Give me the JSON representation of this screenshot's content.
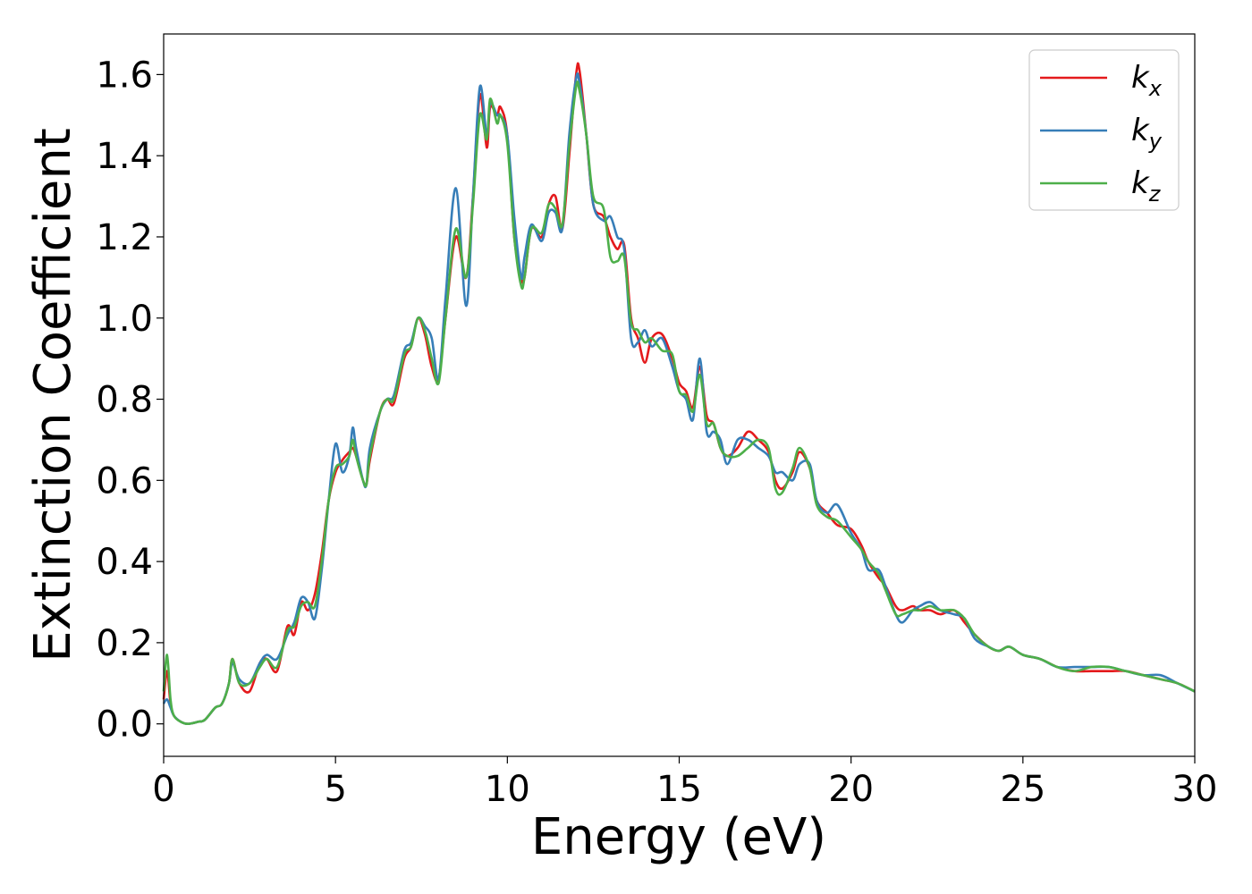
{
  "chart_data": {
    "type": "line",
    "title": "",
    "xlabel": "Energy (eV)",
    "ylabel": "Extinction Coefficient",
    "xlim": [
      0,
      30
    ],
    "ylim": [
      -0.08,
      1.7
    ],
    "xticks": [
      0,
      5,
      10,
      15,
      20,
      25,
      30
    ],
    "yticks": [
      0.0,
      0.2,
      0.4,
      0.6,
      0.8,
      1.0,
      1.2,
      1.4,
      1.6
    ],
    "grid": false,
    "legend_position": "top-right",
    "series": [
      {
        "name": "kx",
        "legend_base": "k",
        "legend_sub": "x",
        "color": "#e41a1c",
        "x": [
          0,
          0.1,
          0.2,
          0.3,
          0.5,
          0.7,
          1.0,
          1.2,
          1.5,
          1.7,
          1.9,
          2.0,
          2.2,
          2.5,
          2.8,
          3.0,
          3.3,
          3.6,
          3.8,
          4.0,
          4.2,
          4.4,
          4.6,
          4.8,
          5.0,
          5.2,
          5.4,
          5.5,
          5.6,
          5.8,
          5.9,
          6.0,
          6.3,
          6.5,
          6.7,
          7.0,
          7.2,
          7.4,
          7.6,
          7.8,
          8.0,
          8.2,
          8.5,
          8.8,
          9.0,
          9.2,
          9.4,
          9.5,
          9.7,
          9.8,
          10.0,
          10.2,
          10.4,
          10.5,
          10.7,
          11.0,
          11.2,
          11.4,
          11.6,
          11.8,
          12.0,
          12.1,
          12.3,
          12.5,
          12.8,
          13.0,
          13.2,
          13.4,
          13.6,
          13.8,
          14.0,
          14.2,
          14.5,
          14.8,
          15.0,
          15.2,
          15.4,
          15.6,
          15.8,
          16.0,
          16.2,
          16.4,
          16.7,
          17.0,
          17.3,
          17.6,
          17.8,
          18.0,
          18.3,
          18.5,
          18.8,
          19.0,
          19.3,
          19.6,
          20.0,
          20.3,
          20.5,
          20.8,
          21.0,
          21.3,
          21.5,
          21.8,
          22.0,
          22.3,
          22.6,
          23.0,
          23.3,
          23.6,
          24.0,
          24.3,
          24.6,
          25.0,
          25.5,
          26.0,
          26.5,
          27.0,
          27.5,
          28.0,
          28.5,
          29.0,
          29.5,
          30.0
        ],
        "y": [
          0.06,
          0.13,
          0.05,
          0.02,
          0.005,
          0.0,
          0.005,
          0.01,
          0.04,
          0.05,
          0.1,
          0.16,
          0.1,
          0.08,
          0.15,
          0.16,
          0.13,
          0.24,
          0.22,
          0.3,
          0.28,
          0.32,
          0.42,
          0.55,
          0.62,
          0.65,
          0.67,
          0.68,
          0.66,
          0.6,
          0.59,
          0.65,
          0.77,
          0.8,
          0.79,
          0.9,
          0.93,
          1.0,
          0.96,
          0.88,
          0.85,
          1.0,
          1.2,
          1.1,
          1.3,
          1.55,
          1.42,
          1.52,
          1.5,
          1.52,
          1.45,
          1.2,
          1.1,
          1.1,
          1.22,
          1.2,
          1.28,
          1.3,
          1.22,
          1.4,
          1.6,
          1.61,
          1.45,
          1.28,
          1.25,
          1.2,
          1.17,
          1.18,
          1.0,
          0.95,
          0.89,
          0.95,
          0.96,
          0.9,
          0.84,
          0.82,
          0.78,
          0.88,
          0.76,
          0.74,
          0.68,
          0.66,
          0.68,
          0.72,
          0.7,
          0.67,
          0.6,
          0.58,
          0.62,
          0.67,
          0.63,
          0.55,
          0.52,
          0.49,
          0.48,
          0.44,
          0.4,
          0.36,
          0.34,
          0.29,
          0.28,
          0.29,
          0.28,
          0.28,
          0.27,
          0.28,
          0.25,
          0.22,
          0.19,
          0.18,
          0.19,
          0.17,
          0.16,
          0.14,
          0.13,
          0.13,
          0.13,
          0.13,
          0.12,
          0.11,
          0.1,
          0.08
        ]
      },
      {
        "name": "ky",
        "legend_base": "k",
        "legend_sub": "y",
        "color": "#377eb8",
        "x": [
          0,
          0.1,
          0.2,
          0.3,
          0.5,
          0.7,
          1.0,
          1.2,
          1.5,
          1.7,
          1.9,
          2.0,
          2.2,
          2.5,
          2.8,
          3.0,
          3.3,
          3.6,
          3.8,
          4.0,
          4.2,
          4.4,
          4.6,
          4.8,
          5.0,
          5.2,
          5.4,
          5.5,
          5.6,
          5.8,
          5.9,
          6.0,
          6.3,
          6.5,
          6.7,
          7.0,
          7.2,
          7.4,
          7.6,
          7.8,
          8.0,
          8.2,
          8.5,
          8.8,
          9.0,
          9.2,
          9.4,
          9.5,
          9.7,
          9.8,
          10.0,
          10.2,
          10.4,
          10.5,
          10.7,
          11.0,
          11.2,
          11.4,
          11.6,
          11.8,
          12.0,
          12.1,
          12.3,
          12.5,
          12.8,
          13.0,
          13.2,
          13.4,
          13.6,
          13.8,
          14.0,
          14.2,
          14.5,
          14.8,
          15.0,
          15.2,
          15.4,
          15.6,
          15.8,
          16.0,
          16.2,
          16.4,
          16.7,
          17.0,
          17.3,
          17.6,
          17.8,
          18.0,
          18.3,
          18.5,
          18.8,
          19.0,
          19.3,
          19.6,
          20.0,
          20.3,
          20.5,
          20.8,
          21.0,
          21.3,
          21.5,
          21.8,
          22.0,
          22.3,
          22.6,
          23.0,
          23.3,
          23.6,
          24.0,
          24.3,
          24.6,
          25.0,
          25.5,
          26.0,
          26.5,
          27.0,
          27.5,
          28.0,
          28.5,
          29.0,
          29.5,
          30.0
        ],
        "y": [
          0.05,
          0.06,
          0.04,
          0.02,
          0.005,
          0.0,
          0.005,
          0.01,
          0.04,
          0.05,
          0.1,
          0.15,
          0.11,
          0.1,
          0.15,
          0.17,
          0.16,
          0.22,
          0.25,
          0.31,
          0.3,
          0.26,
          0.38,
          0.55,
          0.69,
          0.62,
          0.66,
          0.73,
          0.68,
          0.6,
          0.59,
          0.68,
          0.77,
          0.8,
          0.81,
          0.92,
          0.94,
          1.0,
          0.98,
          0.95,
          0.85,
          1.05,
          1.32,
          1.03,
          1.3,
          1.57,
          1.45,
          1.53,
          1.5,
          1.5,
          1.45,
          1.25,
          1.1,
          1.15,
          1.23,
          1.19,
          1.26,
          1.26,
          1.22,
          1.45,
          1.59,
          1.58,
          1.45,
          1.28,
          1.24,
          1.25,
          1.2,
          1.17,
          0.95,
          0.94,
          0.97,
          0.93,
          0.95,
          0.88,
          0.82,
          0.8,
          0.75,
          0.9,
          0.72,
          0.72,
          0.7,
          0.64,
          0.7,
          0.7,
          0.68,
          0.66,
          0.62,
          0.62,
          0.6,
          0.64,
          0.64,
          0.55,
          0.52,
          0.54,
          0.47,
          0.43,
          0.38,
          0.38,
          0.34,
          0.27,
          0.25,
          0.28,
          0.29,
          0.3,
          0.28,
          0.27,
          0.26,
          0.21,
          0.19,
          0.18,
          0.19,
          0.17,
          0.16,
          0.14,
          0.14,
          0.14,
          0.14,
          0.13,
          0.12,
          0.12,
          0.1,
          0.08
        ]
      },
      {
        "name": "kz",
        "legend_base": "k",
        "legend_sub": "z",
        "color": "#4daf4a",
        "x": [
          0,
          0.1,
          0.2,
          0.3,
          0.5,
          0.7,
          1.0,
          1.2,
          1.5,
          1.7,
          1.9,
          2.0,
          2.2,
          2.5,
          2.8,
          3.0,
          3.3,
          3.6,
          3.8,
          4.0,
          4.2,
          4.4,
          4.6,
          4.8,
          5.0,
          5.2,
          5.4,
          5.5,
          5.6,
          5.8,
          5.9,
          6.0,
          6.3,
          6.5,
          6.7,
          7.0,
          7.2,
          7.4,
          7.6,
          7.8,
          8.0,
          8.2,
          8.5,
          8.8,
          9.0,
          9.2,
          9.4,
          9.5,
          9.7,
          9.8,
          10.0,
          10.2,
          10.4,
          10.5,
          10.7,
          11.0,
          11.2,
          11.4,
          11.6,
          11.8,
          12.0,
          12.1,
          12.3,
          12.5,
          12.8,
          13.0,
          13.2,
          13.4,
          13.6,
          13.8,
          14.0,
          14.2,
          14.5,
          14.8,
          15.0,
          15.2,
          15.4,
          15.6,
          15.8,
          16.0,
          16.2,
          16.4,
          16.7,
          17.0,
          17.3,
          17.6,
          17.8,
          18.0,
          18.3,
          18.5,
          18.8,
          19.0,
          19.3,
          19.6,
          20.0,
          20.3,
          20.5,
          20.8,
          21.0,
          21.3,
          21.5,
          21.8,
          22.0,
          22.3,
          22.6,
          23.0,
          23.3,
          23.6,
          24.0,
          24.3,
          24.6,
          25.0,
          25.5,
          26.0,
          26.5,
          27.0,
          27.5,
          28.0,
          28.5,
          29.0,
          29.5,
          30.0
        ],
        "y": [
          0.08,
          0.17,
          0.06,
          0.02,
          0.005,
          0.0,
          0.005,
          0.01,
          0.04,
          0.05,
          0.1,
          0.16,
          0.1,
          0.1,
          0.14,
          0.16,
          0.14,
          0.23,
          0.24,
          0.29,
          0.3,
          0.29,
          0.4,
          0.55,
          0.63,
          0.64,
          0.66,
          0.7,
          0.66,
          0.6,
          0.59,
          0.66,
          0.77,
          0.8,
          0.8,
          0.91,
          0.93,
          1.0,
          0.97,
          0.9,
          0.84,
          1.0,
          1.22,
          1.1,
          1.28,
          1.5,
          1.44,
          1.54,
          1.48,
          1.5,
          1.43,
          1.2,
          1.08,
          1.1,
          1.22,
          1.21,
          1.28,
          1.27,
          1.23,
          1.42,
          1.57,
          1.56,
          1.45,
          1.3,
          1.27,
          1.15,
          1.14,
          1.15,
          0.99,
          0.97,
          0.94,
          0.95,
          0.92,
          0.91,
          0.82,
          0.81,
          0.77,
          0.86,
          0.74,
          0.74,
          0.68,
          0.66,
          0.66,
          0.68,
          0.7,
          0.68,
          0.58,
          0.57,
          0.63,
          0.68,
          0.63,
          0.54,
          0.51,
          0.5,
          0.46,
          0.43,
          0.4,
          0.37,
          0.33,
          0.27,
          0.27,
          0.28,
          0.28,
          0.29,
          0.28,
          0.28,
          0.26,
          0.22,
          0.19,
          0.18,
          0.19,
          0.17,
          0.16,
          0.14,
          0.13,
          0.14,
          0.14,
          0.13,
          0.12,
          0.11,
          0.1,
          0.08
        ]
      }
    ]
  }
}
